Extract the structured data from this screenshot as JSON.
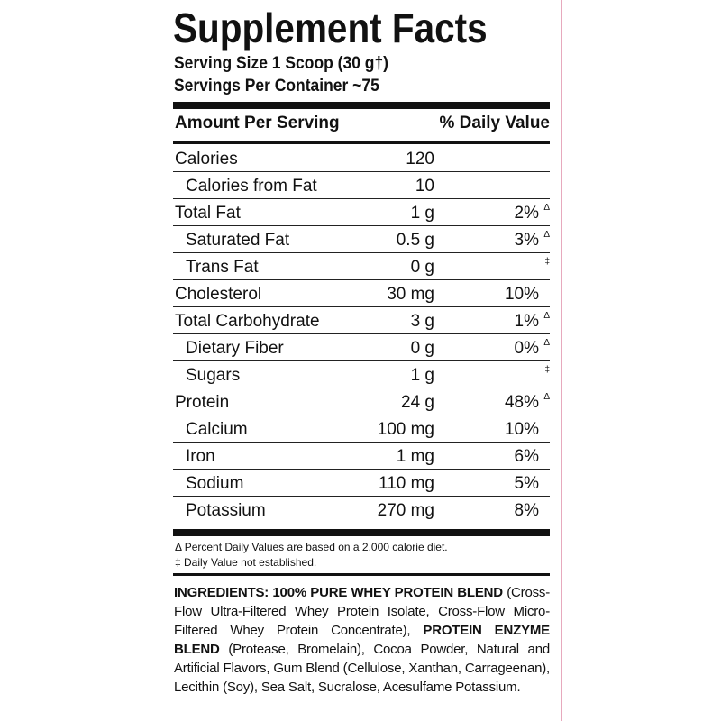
{
  "title": "Supplement Facts",
  "serving_size": "Serving Size 1 Scoop (30 g†)",
  "servings_per_container": "Servings Per Container ~75",
  "header": {
    "amount": "Amount Per Serving",
    "daily_value": "% Daily Value"
  },
  "rows": [
    {
      "name": "Calories",
      "amount": "120",
      "sub": [
        {
          "name": "Calories from Fat",
          "amount": "10"
        }
      ]
    },
    {
      "name": "Total Fat",
      "amount": "1 g",
      "dv": "2%",
      "dv_note": "Δ",
      "sub": [
        {
          "name": "Saturated Fat",
          "amount": "0.5 g",
          "dv": "3%",
          "dv_note": "Δ"
        },
        {
          "name": "Trans Fat",
          "amount": "0 g",
          "dv_note": "‡"
        }
      ]
    },
    {
      "name": "Cholesterol",
      "amount": "30 mg",
      "dv": "10%"
    },
    {
      "name": "Total Carbohydrate",
      "amount": "3 g",
      "dv": "1%",
      "dv_note": "Δ",
      "sub": [
        {
          "name": "Dietary Fiber",
          "amount": "0 g",
          "dv": "0%",
          "dv_note": "Δ"
        },
        {
          "name": "Sugars",
          "amount": "1 g",
          "dv_note": "‡"
        }
      ]
    },
    {
      "name": "Protein",
      "amount": "24 g",
      "dv": "48%",
      "dv_note": "Δ",
      "sub": [
        {
          "name": "Calcium",
          "amount": "100 mg",
          "dv": "10%"
        },
        {
          "name": "Iron",
          "amount": "1 mg",
          "dv": "6%"
        },
        {
          "name": "Sodium",
          "amount": "110 mg",
          "dv": "5%"
        },
        {
          "name": "Potassium",
          "amount": "270 mg",
          "dv": "8%"
        }
      ]
    }
  ],
  "footnotes": [
    "Δ Percent Daily Values are based on a 2,000 calorie diet.",
    "‡ Daily Value not established."
  ],
  "ingredients": [
    {
      "text": "INGREDIENTS: 100% PURE WHEY PROTEIN BLEND",
      "bold": true
    },
    {
      "text": " (Cross-Flow Ultra-Filtered Whey Protein Isolate, Cross-Flow Micro-Filtered Whey Protein Concentrate), ",
      "bold": false
    },
    {
      "text": "PROTEIN ENZYME BLEND",
      "bold": true
    },
    {
      "text": " (Protease, Bromelain), Cocoa Powder, Natural and Artificial Flavors, Gum Blend (Cellulose, Xanthan, Carrageenan), Lecithin (Soy), Sea Salt, Sucralose, Acesulfame Potassium.",
      "bold": false
    }
  ]
}
